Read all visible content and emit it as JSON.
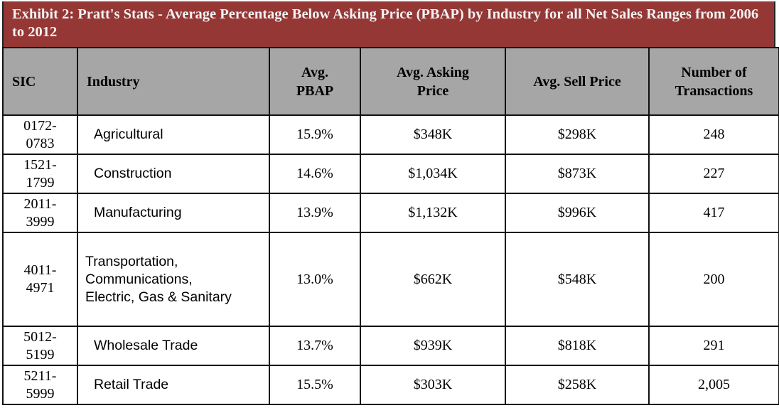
{
  "title": "Exhibit 2: Pratt's Stats -  Average Percentage Below Asking Price (PBAP) by Industry for all Net Sales Ranges from 2006 to 2012",
  "headers": {
    "sic": "SIC",
    "industry": "Industry",
    "pbap": [
      "Avg.",
      "PBAP"
    ],
    "asking": [
      "Avg. Asking",
      "Price"
    ],
    "sell": "Avg. Sell Price",
    "transactions": [
      "Number of",
      "Transactions"
    ]
  },
  "rows": [
    {
      "sic": [
        "0172-",
        "0783"
      ],
      "industry": [
        "Agricultural"
      ],
      "pbap": "15.9%",
      "asking": "$348K",
      "sell": "$298K",
      "transactions": "248"
    },
    {
      "sic": [
        "1521-",
        "1799"
      ],
      "industry": [
        "Construction"
      ],
      "pbap": "14.6%",
      "asking": "$1,034K",
      "sell": "$873K",
      "transactions": "227"
    },
    {
      "sic": [
        "2011-",
        "3999"
      ],
      "industry": [
        "Manufacturing"
      ],
      "pbap": "13.9%",
      "asking": "$1,132K",
      "sell": "$996K",
      "transactions": "417"
    },
    {
      "sic": [
        "4011-",
        "4971"
      ],
      "industry": [
        "Transportation,",
        "Communications,",
        "Electric, Gas & Sanitary"
      ],
      "pbap": "13.0%",
      "asking": "$662K",
      "sell": "$548K",
      "transactions": "200"
    },
    {
      "sic": [
        "5012-",
        "5199"
      ],
      "industry": [
        "Wholesale Trade"
      ],
      "pbap": "13.7%",
      "asking": "$939K",
      "sell": "$818K",
      "transactions": "291"
    },
    {
      "sic": [
        "5211-",
        "5999"
      ],
      "industry": [
        "Retail Trade"
      ],
      "pbap": "15.5%",
      "asking": "$303K",
      "sell": "$258K",
      "transactions": "2,005"
    }
  ]
}
